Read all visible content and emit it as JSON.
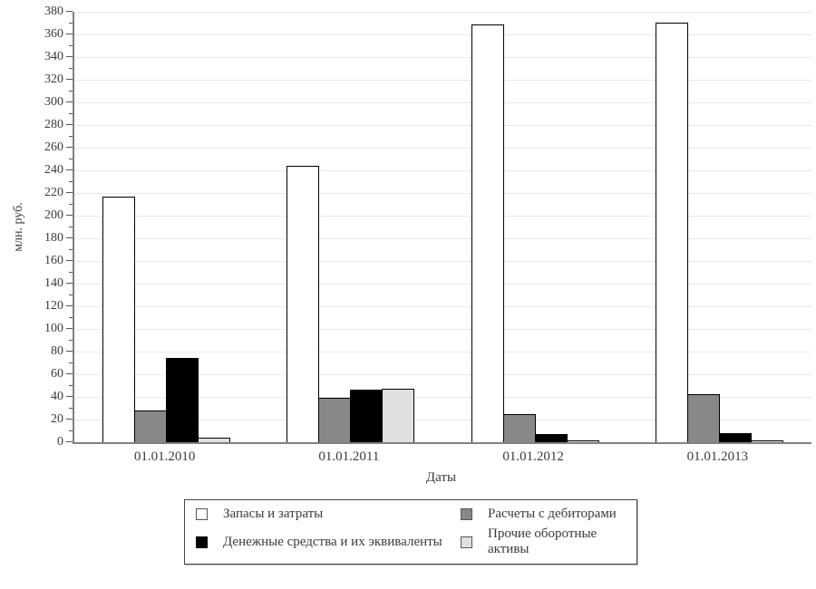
{
  "chart_data": {
    "type": "bar",
    "title": "",
    "xlabel": "Даты",
    "ylabel": "млн. руб.",
    "categories": [
      "01.01.2010",
      "01.01.2011",
      "01.01.2012",
      "01.01.2013"
    ],
    "series": [
      {
        "name": "Запасы и затраты",
        "color": "#ffffff",
        "values": [
          217,
          244,
          369,
          370
        ]
      },
      {
        "name": "Расчеты с дебиторами",
        "color": "#888888",
        "values": [
          28,
          39,
          25,
          42
        ]
      },
      {
        "name": "Денежные средства и их эквиваленты",
        "color": "#000000",
        "values": [
          74,
          46,
          7,
          8
        ]
      },
      {
        "name": "Прочие оборотные активы",
        "color": "#e0e0e0",
        "values": [
          4,
          47,
          1,
          1
        ]
      }
    ],
    "ylim": [
      0,
      380
    ],
    "ytick_step": 20,
    "yminor_step": 10,
    "grid": "horizontal",
    "legend_position": "bottom",
    "colors": {
      "axis": "#808080",
      "gridline": "#e8e8e8",
      "tick": "#555555",
      "bar_border": "#000000"
    }
  }
}
